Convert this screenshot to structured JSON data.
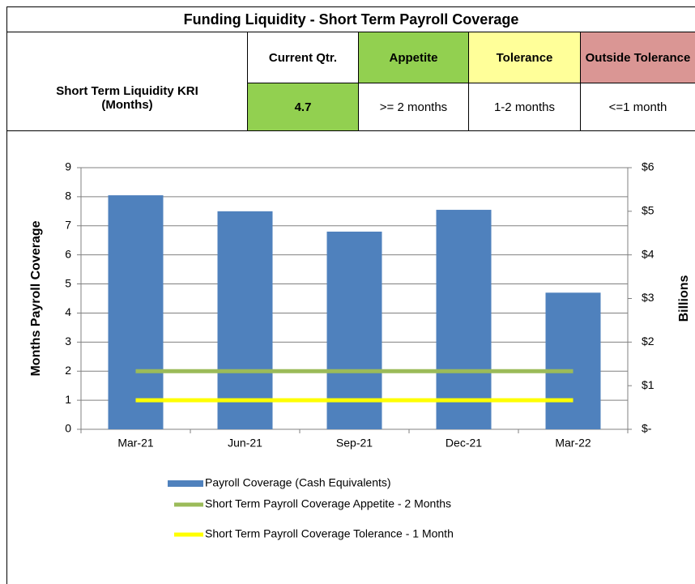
{
  "table": {
    "title": "Funding Liquidity - Short Term Payroll Coverage",
    "kri_label": "Short Term Liquidity KRI (Months)",
    "headers": [
      "Current Qtr.",
      "Appetite",
      "Tolerance",
      "Outside Tolerance"
    ],
    "header_colors": [
      "#ffffff",
      "#92d050",
      "#ffff99",
      "#da9694"
    ],
    "values": [
      "4.7",
      ">= 2 months",
      "1-2 months",
      "<=1 month"
    ],
    "value_colors": [
      "#92d050",
      "#ffffff",
      "#ffffff",
      "#ffffff"
    ]
  },
  "chart_data": {
    "type": "bar",
    "categories": [
      "Mar-21",
      "Jun-21",
      "Sep-21",
      "Dec-21",
      "Mar-22"
    ],
    "series": [
      {
        "name": "Payroll Coverage (Cash Equivalents)",
        "type": "bar",
        "color": "#4f81bd",
        "values": [
          8.05,
          7.5,
          6.8,
          7.55,
          4.7
        ]
      },
      {
        "name": "Short Term Payroll Coverage Appetite - 2 Months",
        "type": "line",
        "color": "#9bbb59",
        "values": [
          2,
          2,
          2,
          2,
          2
        ]
      },
      {
        "name": "Short Term Payroll Coverage Tolerance - 1 Month",
        "type": "line",
        "color": "#ffff00",
        "values": [
          1,
          1,
          1,
          1,
          1
        ]
      }
    ],
    "ylabel": "Months Payroll Coverage",
    "y2label": "Billions",
    "ylim": [
      0,
      9
    ],
    "yticks": [
      0,
      1,
      2,
      3,
      4,
      5,
      6,
      7,
      8,
      9
    ],
    "y2lim": [
      0,
      6
    ],
    "y2ticks": [
      {
        "value": 0,
        "label": "$-"
      },
      {
        "value": 1,
        "label": "$1"
      },
      {
        "value": 2,
        "label": "$2"
      },
      {
        "value": 3,
        "label": "$3"
      },
      {
        "value": 4,
        "label": "$4"
      },
      {
        "value": 5,
        "label": "$5"
      },
      {
        "value": 6,
        "label": "$6"
      }
    ],
    "grid": true,
    "legend": "bottom"
  }
}
